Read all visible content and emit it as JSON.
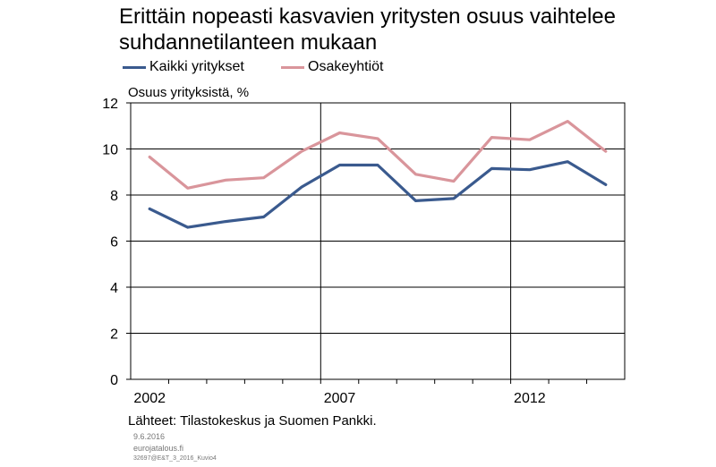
{
  "header": {
    "title": "Erittäin nopeasti kasvavien yritysten osuus vaihtelee suhdannetilanteen mukaan"
  },
  "legend": {
    "items": [
      {
        "label": "Kaikki yritykset",
        "color": "#3a5a8e"
      },
      {
        "label": "Osakeyhtiöt",
        "color": "#d9959b"
      }
    ]
  },
  "footer": {
    "source": "Lähteet: Tilastokeskus ja Suomen Pankki.",
    "date": "9.6.2016",
    "site": "eurojatalous.fi",
    "code": "32697@E&T_3_2016_Kuvio4"
  },
  "chart_data": {
    "type": "line",
    "title": "Erittäin nopeasti kasvavien yritysten osuus vaihtelee suhdannetilanteen mukaan",
    "ylabel": "Osuus yrityksistä, %",
    "xlabel": "",
    "x": [
      2002,
      2003,
      2004,
      2005,
      2006,
      2007,
      2008,
      2009,
      2010,
      2011,
      2012,
      2013,
      2014
    ],
    "x_tick_labels": [
      "2002",
      "2007",
      "2012"
    ],
    "ylim": [
      0,
      12
    ],
    "y_ticks": [
      0,
      2,
      4,
      6,
      8,
      10,
      12
    ],
    "grid": true,
    "legend_position": "top-left",
    "series": [
      {
        "name": "Kaikki yritykset",
        "color": "#3a5a8e",
        "values": [
          7.4,
          6.6,
          6.85,
          7.05,
          8.35,
          9.3,
          9.3,
          7.75,
          7.85,
          9.15,
          9.1,
          9.45,
          8.45
        ]
      },
      {
        "name": "Osakeyhtiöt",
        "color": "#d9959b",
        "values": [
          9.65,
          8.3,
          8.65,
          8.75,
          9.9,
          10.7,
          10.45,
          8.9,
          8.6,
          10.5,
          10.4,
          11.2,
          9.9
        ]
      }
    ]
  }
}
